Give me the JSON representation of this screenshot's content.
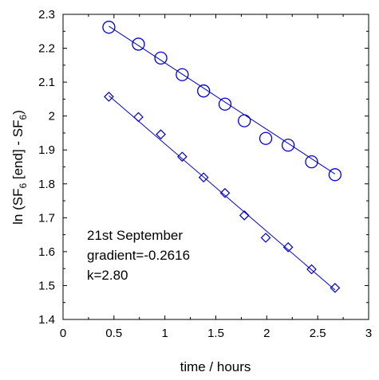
{
  "chart_data": {
    "type": "scatter",
    "xlabel": "time / hours",
    "ylabel": {
      "prefix": "ln (SF",
      "sub1": "6",
      "middle": " [end] - SF",
      "sub2": "6",
      "suffix": ")"
    },
    "xlim": [
      0,
      3
    ],
    "ylim": [
      1.4,
      2.3
    ],
    "x_ticks": [
      "0",
      "0.5",
      "1",
      "1.5",
      "2",
      "2.5",
      "3"
    ],
    "y_ticks": [
      "1.4",
      "1.5",
      "1.6",
      "1.7",
      "1.8",
      "1.9",
      "2",
      "2.1",
      "2.2",
      "2.3"
    ],
    "grid": false,
    "legend": "none",
    "color": "#0000cc",
    "series": [
      {
        "marker": "circle",
        "x": [
          0.45,
          0.74,
          0.96,
          1.17,
          1.38,
          1.59,
          1.78,
          1.99,
          2.21,
          2.44,
          2.67
        ],
        "y": [
          2.262,
          2.212,
          2.171,
          2.122,
          2.074,
          2.035,
          1.986,
          1.934,
          1.914,
          1.865,
          1.827
        ],
        "fit": {
          "x": [
            0.45,
            2.67
          ],
          "y": [
            2.265,
            1.829
          ]
        }
      },
      {
        "marker": "diamond",
        "x": [
          0.45,
          0.74,
          0.96,
          1.17,
          1.38,
          1.59,
          1.78,
          1.99,
          2.21,
          2.44,
          2.67
        ],
        "y": [
          2.057,
          1.997,
          1.946,
          1.88,
          1.819,
          1.773,
          1.707,
          1.641,
          1.613,
          1.548,
          1.493
        ],
        "fit": {
          "x": [
            0.45,
            2.67
          ],
          "y": [
            2.06,
            1.487
          ]
        }
      }
    ],
    "annotations": [
      "21st September",
      "gradient=-0.2616",
      "k=2.80"
    ]
  }
}
